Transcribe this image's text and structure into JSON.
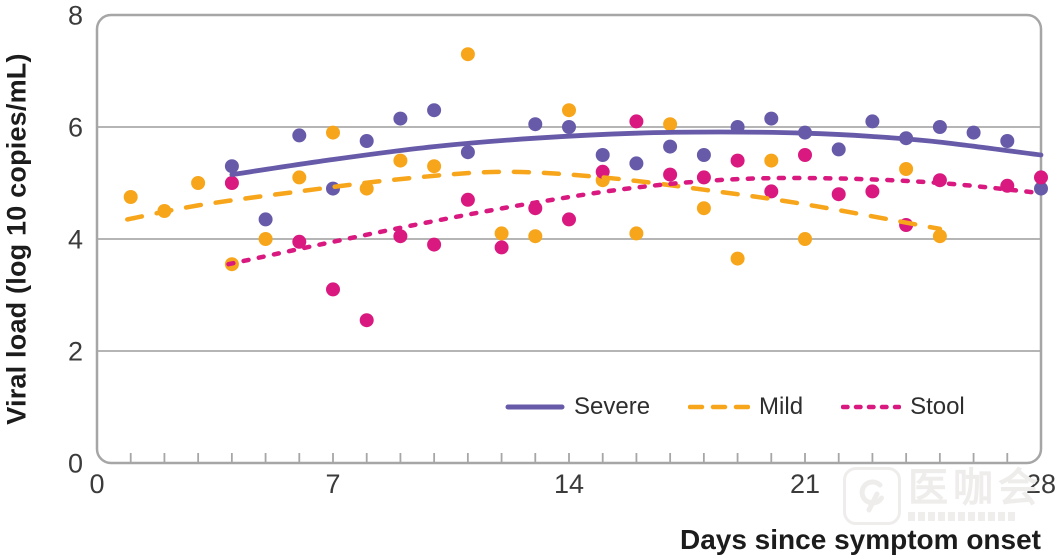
{
  "chart_data": {
    "type": "scatter",
    "title": "",
    "xlabel": "Days since symptom onset",
    "ylabel": "Viral load (log 10 copies/mL)",
    "xlim": [
      0,
      28
    ],
    "ylim": [
      0,
      8
    ],
    "xticks": [
      0,
      7,
      14,
      21,
      28
    ],
    "yticks": [
      0,
      2,
      4,
      6,
      8
    ],
    "grid_lines_y": [
      2,
      4,
      6
    ],
    "minor_tick_every_days": 1,
    "grid": "horizontal",
    "legend_position": "inside-bottom",
    "colors": {
      "severe": "#675aa8",
      "mild": "#f7a61b",
      "stool": "#d9197f",
      "grid": "#b5b5b5",
      "frame": "#a6a6a6",
      "tick_text": "#3b3b3b",
      "axis_title_text": "#1c1c1c"
    },
    "series": [
      {
        "name": "Severe",
        "color": "#675aa8",
        "line_style": "solid",
        "points": [
          [
            4,
            5.3
          ],
          [
            5,
            4.35
          ],
          [
            6,
            5.85
          ],
          [
            7,
            4.9
          ],
          [
            8,
            5.75
          ],
          [
            9,
            6.15
          ],
          [
            10,
            6.3
          ],
          [
            11,
            5.55
          ],
          [
            13,
            6.05
          ],
          [
            14,
            6.0
          ],
          [
            15,
            5.5
          ],
          [
            16,
            5.35
          ],
          [
            17,
            5.65
          ],
          [
            18,
            5.5
          ],
          [
            19,
            6.0
          ],
          [
            20,
            6.15
          ],
          [
            21,
            5.9
          ],
          [
            22,
            5.6
          ],
          [
            23,
            6.1
          ],
          [
            24,
            5.8
          ],
          [
            25,
            6.0
          ],
          [
            26,
            5.9
          ],
          [
            27,
            5.75
          ],
          [
            28,
            4.9
          ]
        ],
        "trend": [
          [
            4,
            5.15
          ],
          [
            7,
            5.42
          ],
          [
            10,
            5.65
          ],
          [
            13,
            5.8
          ],
          [
            16,
            5.89
          ],
          [
            18.5,
            5.91
          ],
          [
            21,
            5.89
          ],
          [
            23,
            5.83
          ],
          [
            25,
            5.73
          ],
          [
            28,
            5.5
          ]
        ]
      },
      {
        "name": "Mild",
        "color": "#f7a61b",
        "line_style": "long-dash",
        "points": [
          [
            1,
            4.75
          ],
          [
            2,
            4.5
          ],
          [
            3,
            5.0
          ],
          [
            4,
            3.55
          ],
          [
            5,
            4.0
          ],
          [
            6,
            5.1
          ],
          [
            7,
            5.9
          ],
          [
            8,
            4.9
          ],
          [
            9,
            5.4
          ],
          [
            10,
            5.3
          ],
          [
            11,
            7.3
          ],
          [
            12,
            4.1
          ],
          [
            13,
            4.05
          ],
          [
            14,
            6.3
          ],
          [
            15,
            5.05
          ],
          [
            16,
            4.1
          ],
          [
            17,
            6.05
          ],
          [
            18,
            4.55
          ],
          [
            19,
            3.65
          ],
          [
            20,
            5.4
          ],
          [
            21,
            4.0
          ],
          [
            24,
            5.25
          ],
          [
            25,
            4.05
          ]
        ],
        "trend": [
          [
            0.9,
            4.35
          ],
          [
            3,
            4.6
          ],
          [
            6,
            4.85
          ],
          [
            9,
            5.07
          ],
          [
            12,
            5.2
          ],
          [
            15,
            5.1
          ],
          [
            18,
            4.88
          ],
          [
            21,
            4.62
          ],
          [
            25,
            4.18
          ]
        ]
      },
      {
        "name": "Stool",
        "color": "#d9197f",
        "line_style": "short-dash",
        "points": [
          [
            4,
            5.0
          ],
          [
            6,
            3.95
          ],
          [
            7,
            3.1
          ],
          [
            8,
            2.55
          ],
          [
            9,
            4.05
          ],
          [
            10,
            3.9
          ],
          [
            11,
            4.7
          ],
          [
            12,
            3.85
          ],
          [
            13,
            4.55
          ],
          [
            14,
            4.35
          ],
          [
            15,
            5.2
          ],
          [
            16,
            6.1
          ],
          [
            17,
            5.15
          ],
          [
            18,
            5.1
          ],
          [
            19,
            5.4
          ],
          [
            20,
            4.85
          ],
          [
            21,
            5.5
          ],
          [
            22,
            4.8
          ],
          [
            23,
            4.85
          ],
          [
            24,
            4.25
          ],
          [
            25,
            5.05
          ],
          [
            27,
            4.95
          ],
          [
            28,
            5.1
          ]
        ],
        "trend": [
          [
            3.9,
            3.55
          ],
          [
            7,
            3.95
          ],
          [
            10,
            4.32
          ],
          [
            13,
            4.65
          ],
          [
            16,
            4.92
          ],
          [
            19,
            5.07
          ],
          [
            22,
            5.08
          ],
          [
            25,
            5.0
          ],
          [
            28,
            4.82
          ]
        ]
      }
    ]
  },
  "watermark": {
    "text": "医咖会"
  }
}
